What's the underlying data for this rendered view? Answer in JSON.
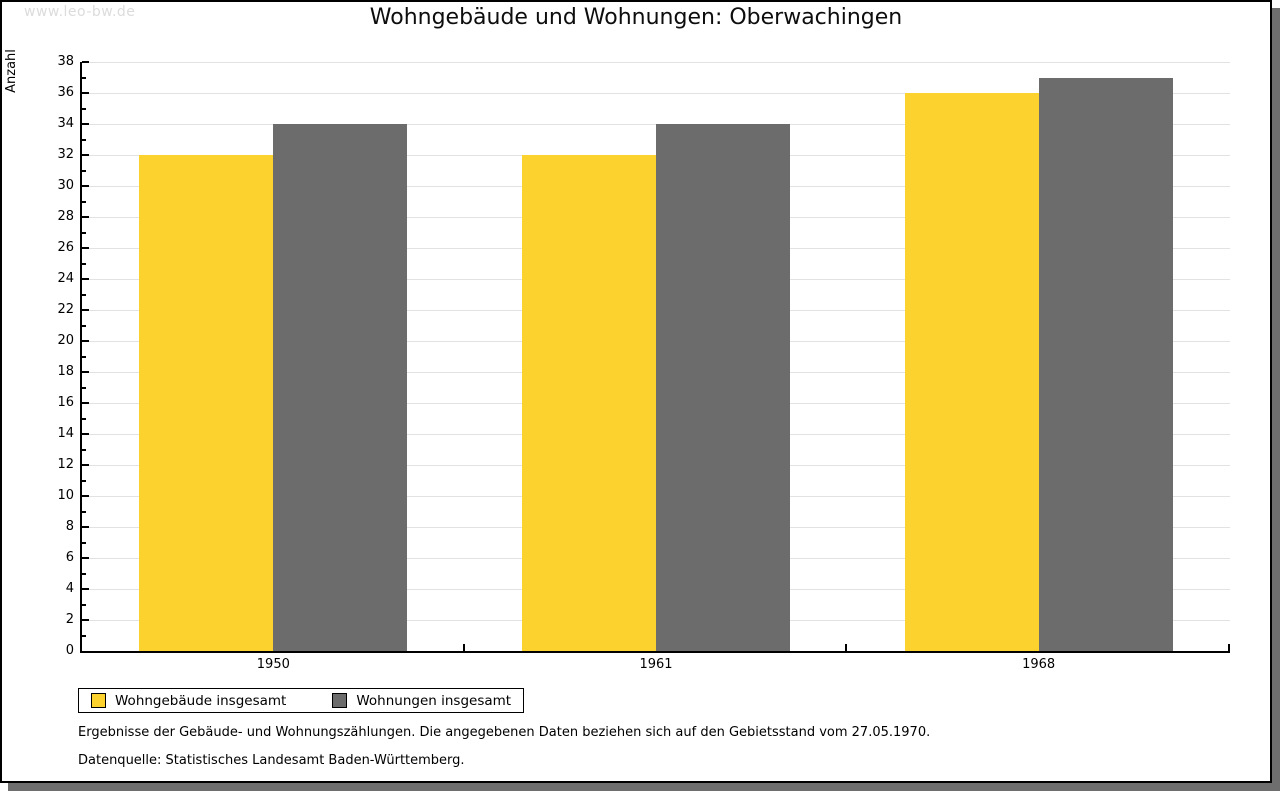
{
  "watermark": "www.leo-bw.de",
  "title": "Wohngebäude und Wohnungen: Oberwachingen",
  "chart_data": {
    "type": "bar",
    "title": "Wohngebäude und Wohnungen: Oberwachingen",
    "categories": [
      "1950",
      "1961",
      "1968"
    ],
    "series": [
      {
        "name": "Wohngebäude insgesamt",
        "color": "#FCD32E",
        "values": [
          32,
          32,
          36
        ]
      },
      {
        "name": "Wohnungen insgesamt",
        "color": "#6C6C6C",
        "values": [
          34,
          34,
          37
        ]
      }
    ],
    "xlabel": "",
    "ylabel": "Anzahl",
    "ylim": [
      0,
      38
    ],
    "ytick_major_step": 2,
    "ytick_minor_step": 1,
    "grid": true,
    "legend_position": "bottom-left"
  },
  "footer": {
    "line1": "Ergebnisse der Gebäude- und Wohnungszählungen. Die angegebenen Daten beziehen sich auf den Gebietsstand vom 27.05.1970.",
    "line2": "Datenquelle: Statistisches Landesamt Baden-Württemberg."
  },
  "colors": {
    "series1": "#FCD32E",
    "series2": "#6C6C6C",
    "gridline": "#e2e2e2",
    "axis": "#000000",
    "page_border": "#000000",
    "page_shadow": "#6E6E6E",
    "watermark": "#dcdcdc",
    "background": "#ffffff"
  }
}
